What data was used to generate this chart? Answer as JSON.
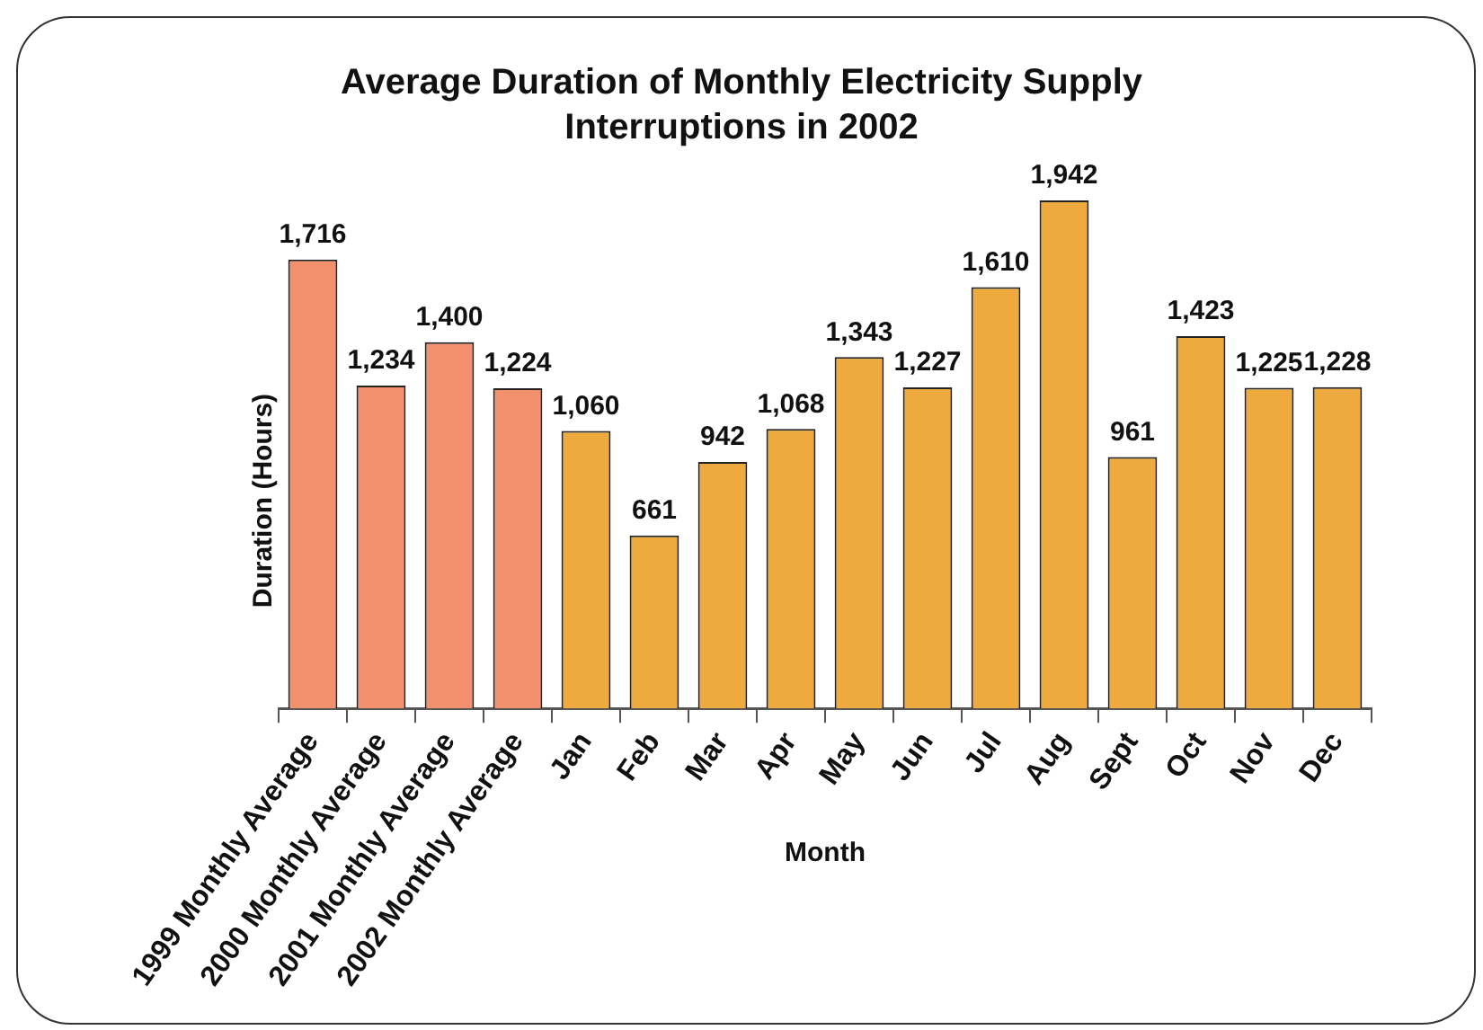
{
  "chart_data": {
    "type": "bar",
    "title": "Average Duration of Monthly Electricity Supply Interruptions in 2002",
    "xlabel": "Month",
    "ylabel": "Duration (Hours)",
    "categories": [
      "1999 Monthly Average",
      "2000 Monthly Average",
      "2001 Monthly Average",
      "2002 Monthly Average",
      "Jan",
      "Feb",
      "Mar",
      "Apr",
      "May",
      "Jun",
      "Jul",
      "Aug",
      "Sept",
      "Oct",
      "Nov",
      "Dec"
    ],
    "values": [
      1716,
      1234,
      1400,
      1224,
      1060,
      661,
      942,
      1068,
      1343,
      1227,
      1610,
      1942,
      961,
      1423,
      1225,
      1228
    ],
    "value_labels": [
      "1,716",
      "1,234",
      "1,400",
      "1,224",
      "1,060",
      "661",
      "942",
      "1,068",
      "1,343",
      "1,227",
      "1,610",
      "1,942",
      "961",
      "1,423",
      "1,225",
      "1,228"
    ],
    "colors": [
      "#f3916e",
      "#f3916e",
      "#f3916e",
      "#f3916e",
      "#eeaa3e",
      "#eeaa3e",
      "#eeaa3e",
      "#eeaa3e",
      "#eeaa3e",
      "#eeaa3e",
      "#eeaa3e",
      "#eeaa3e",
      "#eeaa3e",
      "#eeaa3e",
      "#eeaa3e",
      "#eeaa3e"
    ],
    "tick_labels": "x"
  }
}
